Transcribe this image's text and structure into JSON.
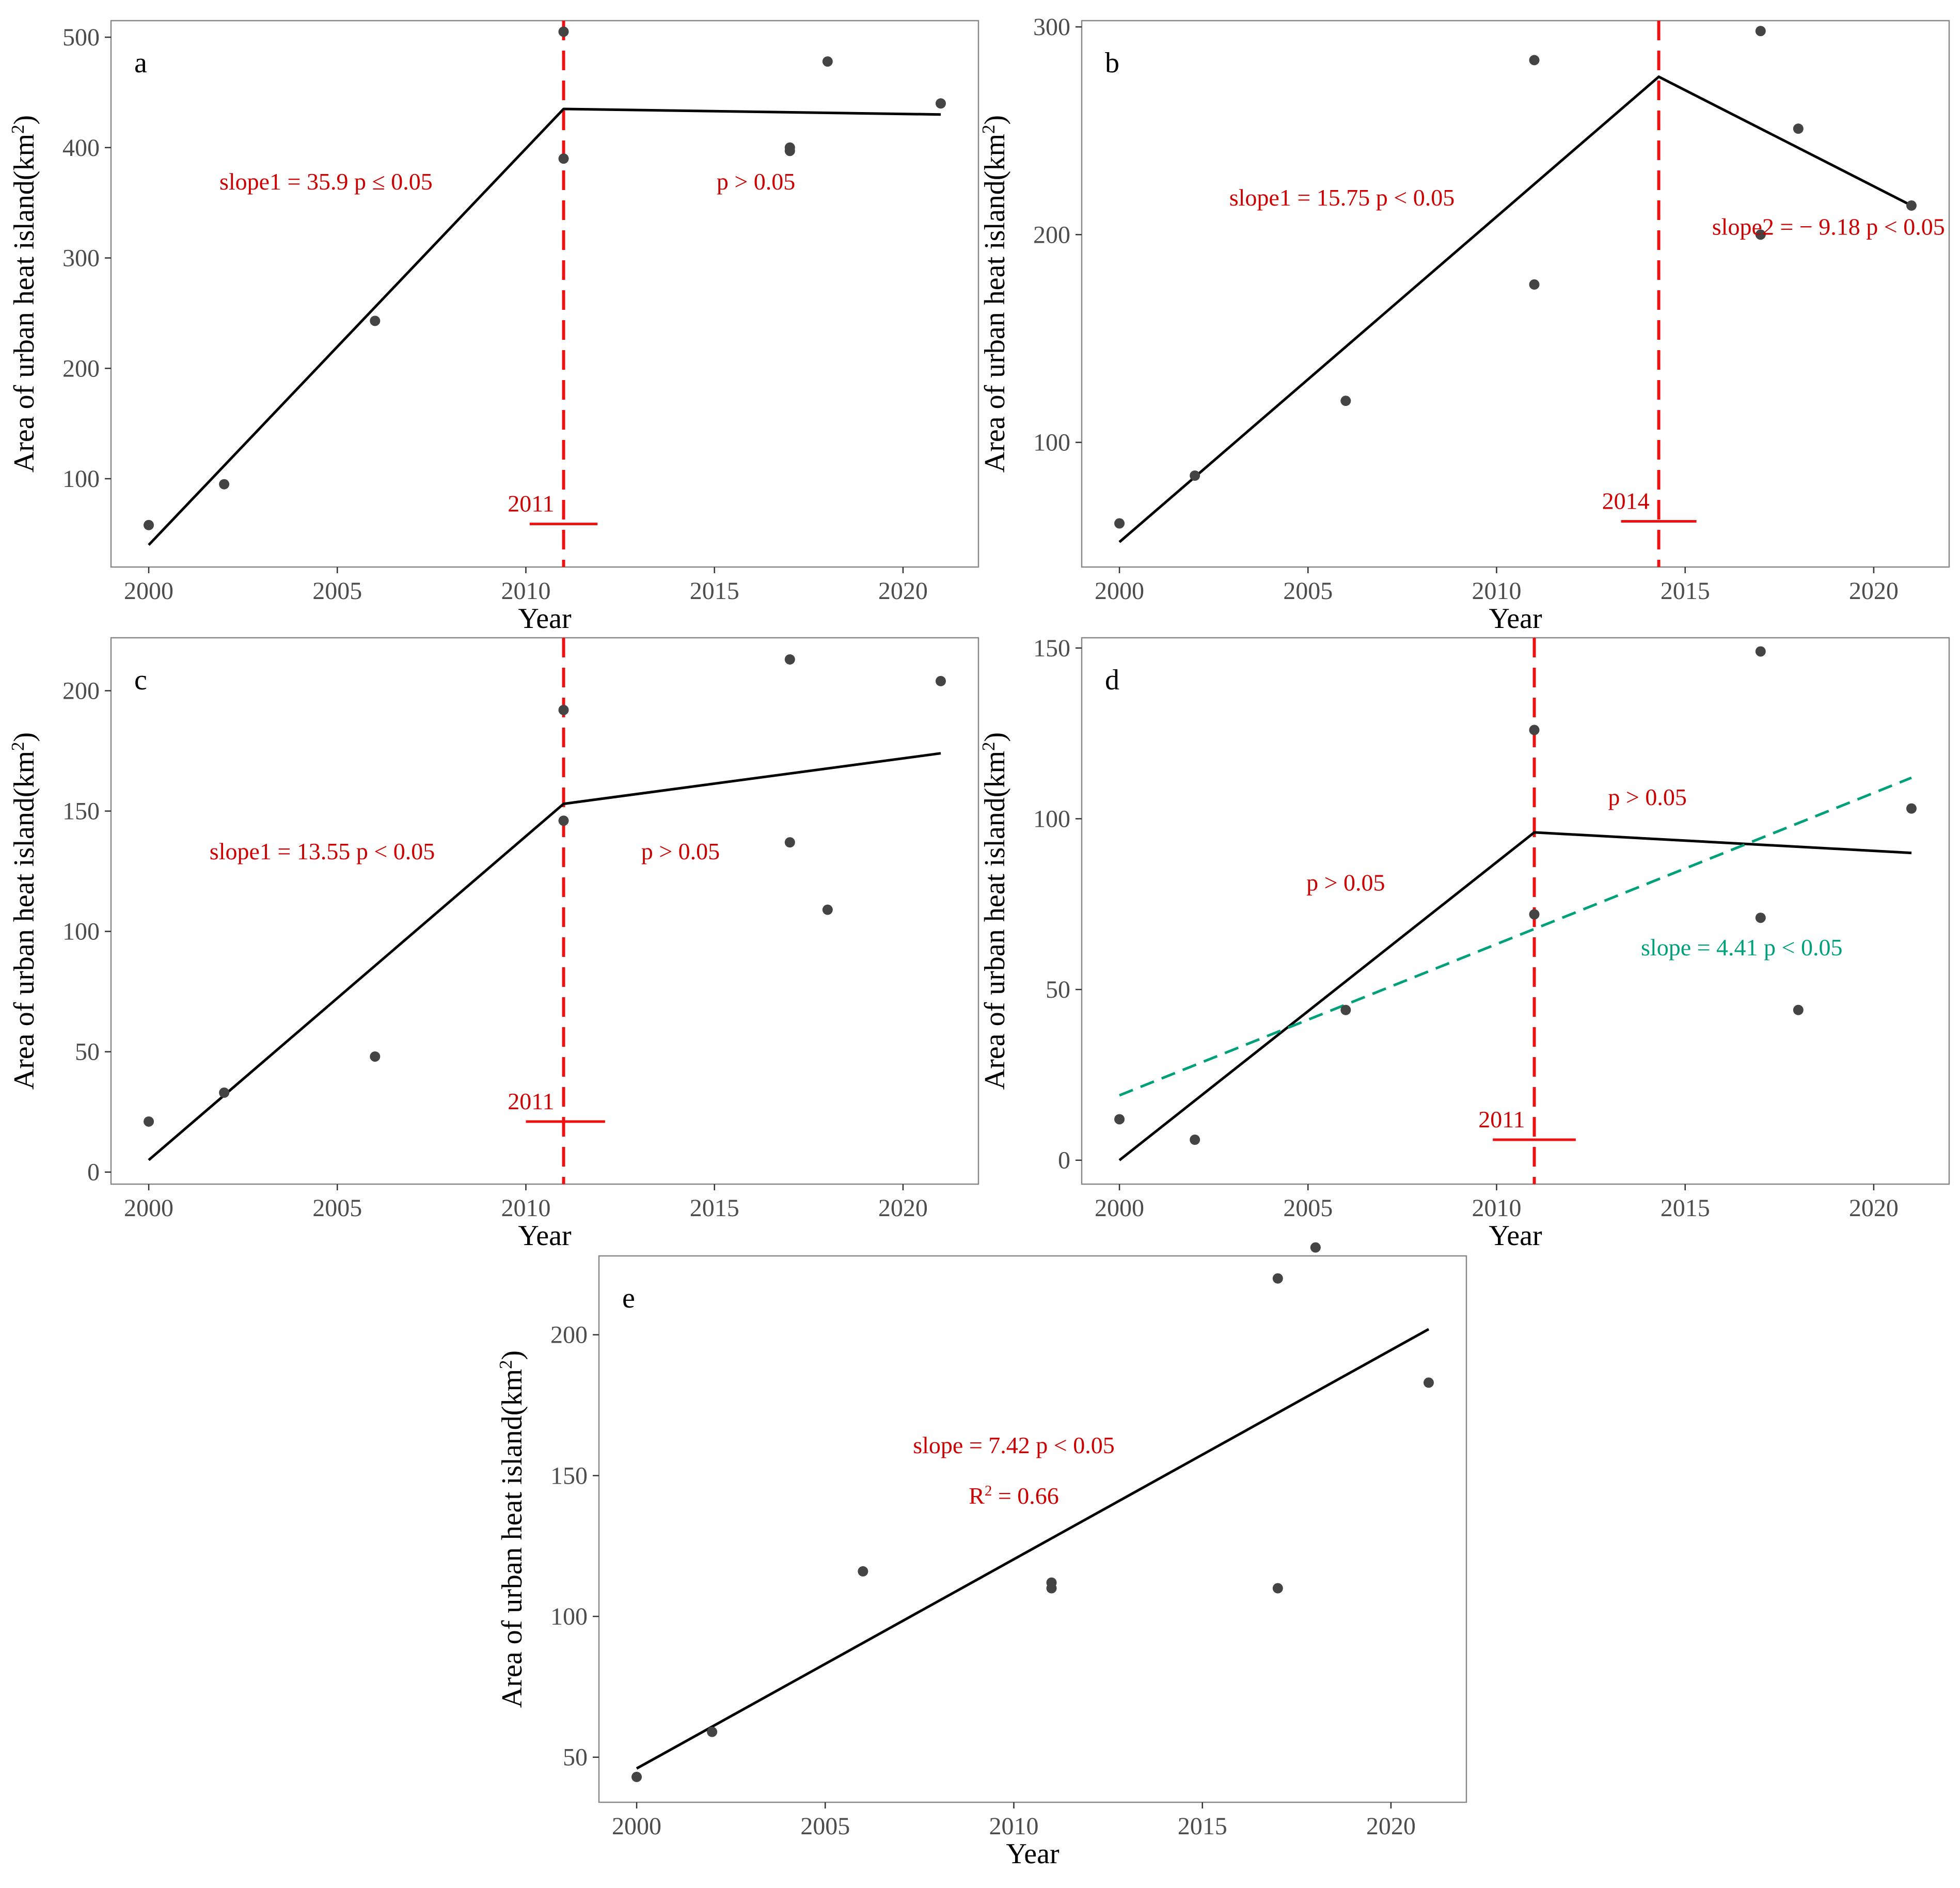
{
  "colors": {
    "annotation": "#cc0000",
    "breakpoint": "#ee1111",
    "trend": "#00a07a",
    "fit": "#000000",
    "point": "#444444",
    "frame": "#888888",
    "tick_text": "#4d4d4d"
  },
  "chart_data": [
    {
      "id": "a",
      "type": "scatter",
      "panel_label": "a",
      "xlabel": "Year",
      "ylabel": "Area of urban heat island(km²)",
      "xlim": [
        1999,
        2022
      ],
      "ylim": [
        20,
        515
      ],
      "xticks": [
        2000,
        2005,
        2010,
        2015,
        2020
      ],
      "yticks": [
        100,
        200,
        300,
        400,
        500
      ],
      "points": [
        [
          2000,
          58
        ],
        [
          2002,
          95
        ],
        [
          2006,
          243
        ],
        [
          2011,
          390
        ],
        [
          2011,
          505
        ],
        [
          2017,
          397
        ],
        [
          2017,
          400
        ],
        [
          2018,
          478
        ],
        [
          2021,
          440
        ]
      ],
      "fit_line": [
        [
          2000,
          40
        ],
        [
          2011,
          435
        ],
        [
          2021,
          430
        ]
      ],
      "breakpoint": {
        "x": 2011,
        "label": "2011",
        "ci": [
          2010.1,
          2011.9
        ],
        "bar_y": 59
      },
      "annotations": [
        {
          "text": "slope1 = 35.9 p ≤ 0.05",
          "x": 2004.7,
          "y": 362
        },
        {
          "text": "p > 0.05",
          "x": 2016.1,
          "y": 362
        }
      ]
    },
    {
      "id": "b",
      "type": "scatter",
      "panel_label": "b",
      "xlabel": "Year",
      "ylabel": "Area of urban heat island(km²)",
      "xlim": [
        1999,
        2022
      ],
      "ylim": [
        40,
        303
      ],
      "xticks": [
        2000,
        2005,
        2010,
        2015,
        2020
      ],
      "yticks": [
        100,
        200,
        300
      ],
      "points": [
        [
          2000,
          61
        ],
        [
          2002,
          84
        ],
        [
          2006,
          120
        ],
        [
          2011,
          176
        ],
        [
          2011,
          284
        ],
        [
          2017,
          200
        ],
        [
          2017,
          298
        ],
        [
          2018,
          251
        ],
        [
          2021,
          214
        ]
      ],
      "fit_line": [
        [
          2000,
          52
        ],
        [
          2014.3,
          276
        ],
        [
          2021,
          214
        ]
      ],
      "breakpoint": {
        "x": 2014.3,
        "label": "2014",
        "ci": [
          2013.3,
          2015.3
        ],
        "bar_y": 62
      },
      "annotations": [
        {
          "text": "slope1 = 15.75 p < 0.05",
          "x": 2005.9,
          "y": 214
        },
        {
          "text": "slope2 = − 9.18 p < 0.05",
          "x": 2018.8,
          "y": 200
        }
      ]
    },
    {
      "id": "c",
      "type": "scatter",
      "panel_label": "c",
      "xlabel": "Year",
      "ylabel": "Area of urban heat island(km²)",
      "xlim": [
        1999,
        2022
      ],
      "ylim": [
        -5,
        222
      ],
      "xticks": [
        2000,
        2005,
        2010,
        2015,
        2020
      ],
      "yticks": [
        0,
        50,
        100,
        150,
        200
      ],
      "points": [
        [
          2000,
          21
        ],
        [
          2002,
          33
        ],
        [
          2006,
          48
        ],
        [
          2011,
          146
        ],
        [
          2011,
          192
        ],
        [
          2017,
          137
        ],
        [
          2017,
          213
        ],
        [
          2018,
          109
        ],
        [
          2021,
          204
        ]
      ],
      "fit_line": [
        [
          2000,
          5
        ],
        [
          2011,
          153
        ],
        [
          2021,
          174
        ]
      ],
      "breakpoint": {
        "x": 2011,
        "label": "2011",
        "ci": [
          2010,
          2012.1
        ],
        "bar_y": 21
      },
      "annotations": [
        {
          "text": "slope1 = 13.55 p < 0.05",
          "x": 2004.6,
          "y": 130
        },
        {
          "text": "p > 0.05",
          "x": 2014.1,
          "y": 130
        }
      ]
    },
    {
      "id": "d",
      "type": "scatter",
      "panel_label": "d",
      "xlabel": "Year",
      "ylabel": "Area of urban heat island(km²)",
      "xlim": [
        1999,
        2022
      ],
      "ylim": [
        -7,
        153
      ],
      "xticks": [
        2000,
        2005,
        2010,
        2015,
        2020
      ],
      "yticks": [
        0,
        50,
        100,
        150
      ],
      "points": [
        [
          2000,
          12
        ],
        [
          2002,
          6
        ],
        [
          2006,
          44
        ],
        [
          2011,
          72
        ],
        [
          2011,
          126
        ],
        [
          2017,
          71
        ],
        [
          2017,
          149
        ],
        [
          2018,
          44
        ],
        [
          2021,
          103
        ]
      ],
      "fit_line": [
        [
          2000,
          0
        ],
        [
          2011,
          96
        ],
        [
          2021,
          90
        ]
      ],
      "trend_line": [
        [
          2000,
          19
        ],
        [
          2021,
          112
        ]
      ],
      "breakpoint": {
        "x": 2011,
        "label": "2011",
        "ci": [
          2009.9,
          2012.1
        ],
        "bar_y": 6
      },
      "annotations": [
        {
          "text": "p > 0.05",
          "x": 2006,
          "y": 79,
          "color": "annotation"
        },
        {
          "text": "p > 0.05",
          "x": 2014,
          "y": 104,
          "color": "annotation"
        },
        {
          "text": "slope = 4.41 p < 0.05",
          "x": 2016.5,
          "y": 60,
          "color": "trend"
        }
      ]
    },
    {
      "id": "e",
      "type": "scatter",
      "panel_label": "e",
      "xlabel": "Year",
      "ylabel": "Area of urban heat island(km²)",
      "xlim": [
        1999,
        2022
      ],
      "ylim": [
        34,
        228
      ],
      "xticks": [
        2000,
        2005,
        2010,
        2015,
        2020
      ],
      "yticks": [
        50,
        100,
        150,
        200
      ],
      "points": [
        [
          2000,
          43
        ],
        [
          2002,
          59
        ],
        [
          2006,
          116
        ],
        [
          2011,
          110
        ],
        [
          2011,
          112
        ],
        [
          2017,
          110
        ],
        [
          2017,
          220
        ],
        [
          2018,
          231
        ],
        [
          2021,
          183
        ]
      ],
      "fit_line": [
        [
          2000,
          46
        ],
        [
          2021,
          202
        ]
      ],
      "annotations": [
        {
          "text": "slope = 7.42 p < 0.05",
          "x": 2010,
          "y": 158
        },
        {
          "text": "R² = 0.66",
          "x": 2010,
          "y": 140
        }
      ]
    }
  ]
}
